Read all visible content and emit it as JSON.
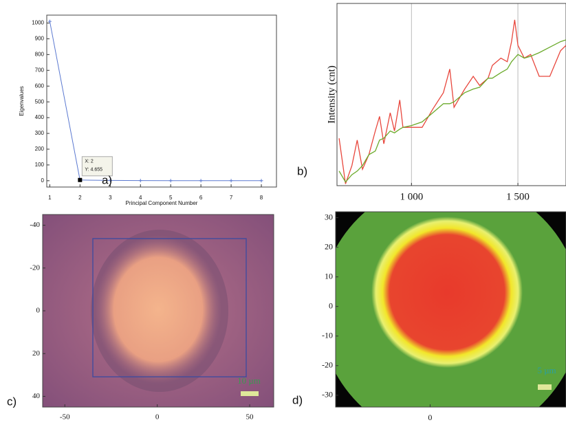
{
  "chart_data": [
    {
      "type": "line",
      "panel_label": "a)",
      "x_label": "Principal Component Number",
      "y_label": "Eigenvalues",
      "x": [
        1,
        2,
        3,
        4,
        5,
        6,
        7,
        8
      ],
      "series": [
        {
          "color": "#5a78d0",
          "values": [
            1010,
            4.655,
            2,
            1,
            0.5,
            0.3,
            0.2,
            0.1
          ]
        }
      ],
      "xlim": [
        0.9,
        8.5
      ],
      "ylim": [
        -40,
        1050
      ],
      "xticks": [
        1,
        2,
        3,
        4,
        5,
        6,
        7,
        8
      ],
      "yticks": [
        0,
        100,
        200,
        300,
        400,
        500,
        600,
        700,
        800,
        900,
        1000
      ],
      "selected_x": 2,
      "tooltip": [
        "X: 2",
        "Y: 4.655"
      ]
    },
    {
      "type": "line",
      "panel_label": "b)",
      "y_label": "Intensity (cnt)",
      "x": [
        660,
        690,
        720,
        745,
        770,
        800,
        830,
        850,
        870,
        900,
        920,
        945,
        960,
        1000,
        1050,
        1100,
        1150,
        1180,
        1200,
        1250,
        1290,
        1320,
        1360,
        1380,
        1420,
        1450,
        1470,
        1485,
        1500,
        1530,
        1560,
        1600,
        1650,
        1700,
        1726
      ],
      "series": [
        {
          "color": "#e8463c",
          "values": [
            26,
            1,
            11,
            25,
            9,
            17,
            30,
            38,
            23,
            40,
            30,
            47,
            32,
            32,
            32,
            42,
            51,
            64,
            43,
            53,
            60,
            55,
            59,
            66,
            70,
            68,
            79,
            91,
            77,
            70,
            72,
            60,
            60,
            74,
            77
          ]
        },
        {
          "color": "#6aaa2a",
          "values": [
            8,
            2,
            6,
            8,
            11,
            17,
            19,
            25,
            26,
            30,
            29,
            31,
            32,
            33,
            35,
            40,
            45,
            45,
            46,
            51,
            53,
            54,
            59,
            59,
            62,
            64,
            68,
            70,
            72,
            70,
            71,
            73,
            76,
            79,
            80
          ]
        }
      ],
      "xlim": [
        650,
        1726
      ],
      "ylim": [
        0,
        100
      ],
      "xticks": [
        {
          "value": 1000,
          "label": "1 000"
        },
        {
          "value": 1500,
          "label": "1 500"
        }
      ],
      "grid": "x"
    },
    {
      "type": "image",
      "panel_label": "c)",
      "xlim": [
        -62,
        63
      ],
      "ylim": [
        45,
        -45
      ],
      "xticks": [
        -50,
        0,
        50
      ],
      "yticks": [
        -40,
        -20,
        0,
        20,
        40
      ],
      "scale_bar": "10 µm"
    },
    {
      "type": "image",
      "panel_label": "d)",
      "xlim": [
        -32,
        46
      ],
      "ylim": [
        -34,
        32
      ],
      "xticks": [
        0
      ],
      "yticks": [
        30,
        20,
        10,
        0,
        -10,
        -20,
        -30
      ],
      "scale_bar": "5 µm"
    }
  ]
}
